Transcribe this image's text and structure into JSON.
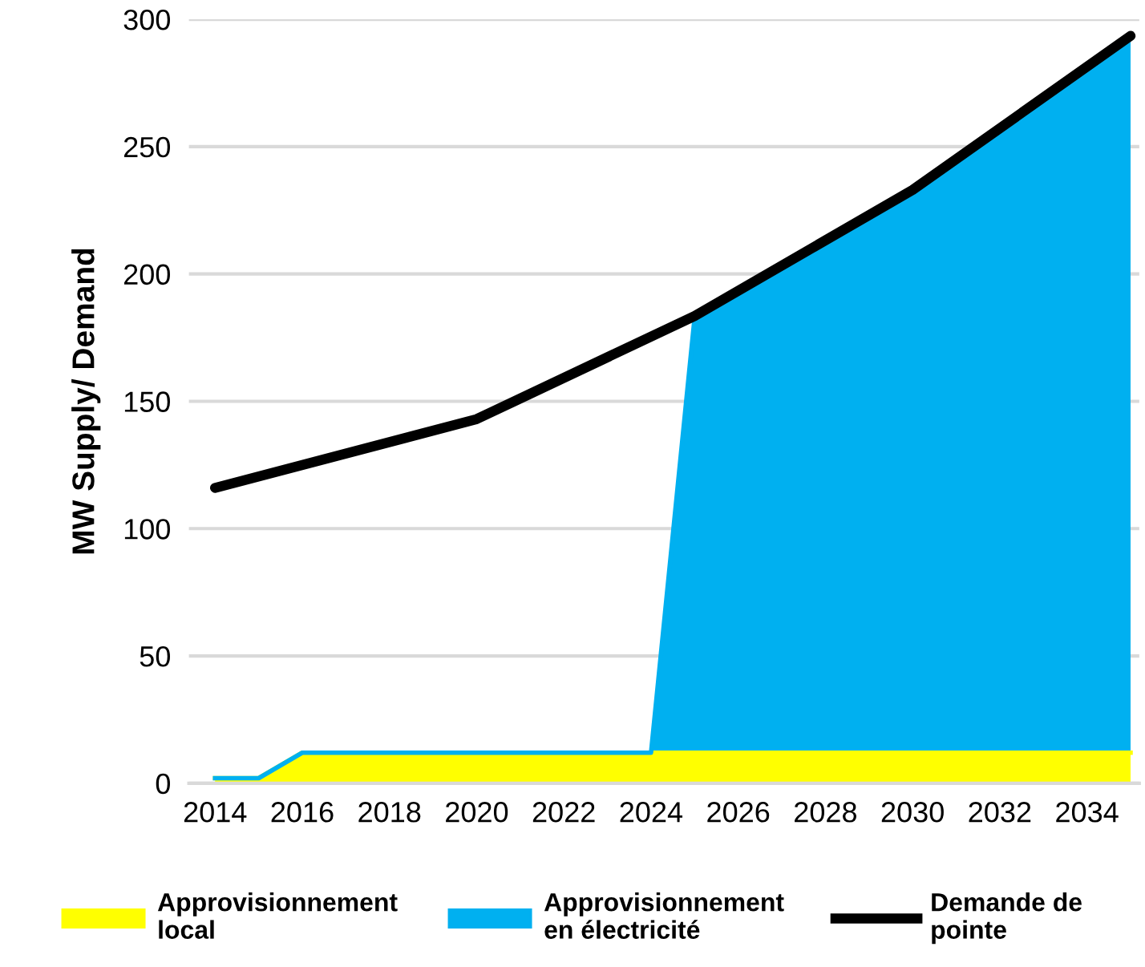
{
  "chart_data": {
    "type": "area",
    "stacked": true,
    "ylabel": "MW Supply/ Demand",
    "x": [
      2014,
      2015,
      2016,
      2024,
      2025,
      2030,
      2035
    ],
    "series": [
      {
        "name": "Approvisionnement local",
        "color": "#ffff00",
        "values": [
          2,
          2,
          12,
          12,
          12,
          12,
          12
        ]
      },
      {
        "name": "Approvisionnement en électricité",
        "color": "#00b0f0",
        "values": [
          0,
          0,
          0,
          0,
          171,
          221,
          281
        ]
      },
      {
        "name": "Demande de pointe",
        "type": "line",
        "color": "#000000",
        "x": [
          2014,
          2020,
          2025,
          2030,
          2035
        ],
        "values": [
          116,
          143,
          183.5,
          233,
          293.5
        ]
      }
    ],
    "xlim": [
      2013.4,
      2035.2
    ],
    "xticks": [
      2014,
      2016,
      2018,
      2020,
      2022,
      2024,
      2026,
      2028,
      2030,
      2032,
      2034
    ],
    "ylim": [
      0,
      300
    ],
    "yticks": [
      0,
      50,
      100,
      150,
      200,
      250,
      300
    ],
    "grid": "y",
    "legend": "bottom"
  }
}
